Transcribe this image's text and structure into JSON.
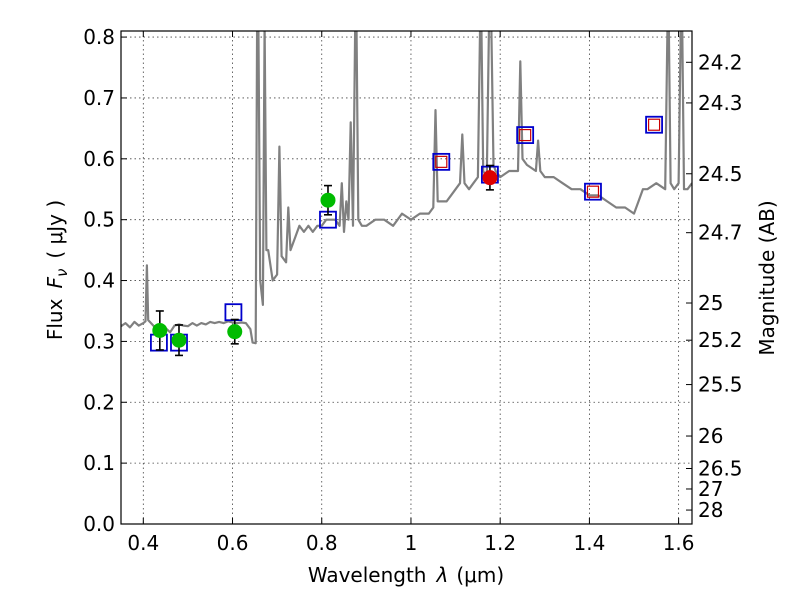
{
  "chart_data": {
    "type": "scatter",
    "title": "",
    "xlabel": "Wavelength",
    "xlabel_symbol": "λ",
    "xlabel_unit": "(μm)",
    "ylabel": "Flux",
    "ylabel_symbol": "F",
    "ylabel_subscript": "ν",
    "ylabel_unit": "( μJy )",
    "y2label": "Magnitude (AB)",
    "xlim": [
      0.35,
      1.63
    ],
    "ylim": [
      0.0,
      0.81
    ],
    "grid": true,
    "xticks": [
      {
        "value": 0.4,
        "label": "0.4"
      },
      {
        "value": 0.6,
        "label": "0.6"
      },
      {
        "value": 0.8,
        "label": "0.8"
      },
      {
        "value": 1.0,
        "label": "1"
      },
      {
        "value": 1.2,
        "label": "1.2"
      },
      {
        "value": 1.4,
        "label": "1.4"
      },
      {
        "value": 1.6,
        "label": "1.6"
      }
    ],
    "yticks": [
      {
        "value": 0.0,
        "label": "0.0"
      },
      {
        "value": 0.1,
        "label": "0.1"
      },
      {
        "value": 0.2,
        "label": "0.2"
      },
      {
        "value": 0.3,
        "label": "0.3"
      },
      {
        "value": 0.4,
        "label": "0.4"
      },
      {
        "value": 0.5,
        "label": "0.5"
      },
      {
        "value": 0.6,
        "label": "0.6"
      },
      {
        "value": 0.7,
        "label": "0.7"
      },
      {
        "value": 0.8,
        "label": "0.8"
      }
    ],
    "y2ticks": [
      {
        "mag": 24.2,
        "label": "24.2"
      },
      {
        "mag": 24.3,
        "label": "24.3"
      },
      {
        "mag": 24.5,
        "label": "24.5"
      },
      {
        "mag": 24.7,
        "label": "24.7"
      },
      {
        "mag": 25,
        "label": "25"
      },
      {
        "mag": 25.2,
        "label": "25.2"
      },
      {
        "mag": 25.5,
        "label": "25.5"
      },
      {
        "mag": 26,
        "label": "26"
      },
      {
        "mag": 26.5,
        "label": "26.5"
      },
      {
        "mag": 27,
        "label": "27"
      },
      {
        "mag": 28,
        "label": "28"
      }
    ],
    "colors": {
      "spectrum": "#808080",
      "model_box": "#0000cc",
      "inner_box": "#cc0000",
      "green_point": "#00bb00",
      "red_point": "#dd0000",
      "error_bar": "#000000"
    },
    "series": [
      {
        "name": "model-spectrum",
        "kind": "line",
        "points": [
          [
            0.35,
            0.325
          ],
          [
            0.36,
            0.33
          ],
          [
            0.37,
            0.323
          ],
          [
            0.38,
            0.332
          ],
          [
            0.39,
            0.326
          ],
          [
            0.4,
            0.33
          ],
          [
            0.405,
            0.333
          ],
          [
            0.408,
            0.425
          ],
          [
            0.411,
            0.335
          ],
          [
            0.42,
            0.328
          ],
          [
            0.43,
            0.32
          ],
          [
            0.44,
            0.318
          ],
          [
            0.45,
            0.322
          ],
          [
            0.46,
            0.315
          ],
          [
            0.47,
            0.326
          ],
          [
            0.48,
            0.328
          ],
          [
            0.49,
            0.326
          ],
          [
            0.5,
            0.325
          ],
          [
            0.51,
            0.33
          ],
          [
            0.52,
            0.326
          ],
          [
            0.53,
            0.33
          ],
          [
            0.54,
            0.328
          ],
          [
            0.55,
            0.332
          ],
          [
            0.56,
            0.33
          ],
          [
            0.57,
            0.332
          ],
          [
            0.58,
            0.33
          ],
          [
            0.59,
            0.333
          ],
          [
            0.6,
            0.331
          ],
          [
            0.61,
            0.33
          ],
          [
            0.62,
            0.331
          ],
          [
            0.63,
            0.33
          ],
          [
            0.64,
            0.32
          ],
          [
            0.645,
            0.298
          ],
          [
            0.652,
            0.297
          ],
          [
            0.655,
            0.82
          ],
          [
            0.658,
            0.82
          ],
          [
            0.662,
            0.4
          ],
          [
            0.668,
            0.36
          ],
          [
            0.672,
            0.82
          ],
          [
            0.676,
            0.45
          ],
          [
            0.68,
            0.45
          ],
          [
            0.69,
            0.4
          ],
          [
            0.7,
            0.41
          ],
          [
            0.705,
            0.62
          ],
          [
            0.71,
            0.44
          ],
          [
            0.72,
            0.43
          ],
          [
            0.725,
            0.52
          ],
          [
            0.73,
            0.45
          ],
          [
            0.74,
            0.47
          ],
          [
            0.75,
            0.49
          ],
          [
            0.76,
            0.48
          ],
          [
            0.77,
            0.49
          ],
          [
            0.78,
            0.48
          ],
          [
            0.79,
            0.49
          ],
          [
            0.8,
            0.49
          ],
          [
            0.81,
            0.5
          ],
          [
            0.82,
            0.5
          ],
          [
            0.83,
            0.5
          ],
          [
            0.84,
            0.49
          ],
          [
            0.845,
            0.56
          ],
          [
            0.85,
            0.48
          ],
          [
            0.855,
            0.53
          ],
          [
            0.86,
            0.5
          ],
          [
            0.865,
            0.66
          ],
          [
            0.87,
            0.49
          ],
          [
            0.875,
            0.82
          ],
          [
            0.878,
            0.82
          ],
          [
            0.882,
            0.5
          ],
          [
            0.89,
            0.49
          ],
          [
            0.9,
            0.49
          ],
          [
            0.92,
            0.5
          ],
          [
            0.94,
            0.5
          ],
          [
            0.96,
            0.49
          ],
          [
            0.98,
            0.51
          ],
          [
            1.0,
            0.5
          ],
          [
            1.02,
            0.51
          ],
          [
            1.04,
            0.51
          ],
          [
            1.05,
            0.52
          ],
          [
            1.055,
            0.68
          ],
          [
            1.06,
            0.53
          ],
          [
            1.07,
            0.53
          ],
          [
            1.08,
            0.53
          ],
          [
            1.09,
            0.54
          ],
          [
            1.1,
            0.55
          ],
          [
            1.11,
            0.56
          ],
          [
            1.115,
            0.64
          ],
          [
            1.12,
            0.56
          ],
          [
            1.13,
            0.55
          ],
          [
            1.14,
            0.56
          ],
          [
            1.15,
            0.57
          ],
          [
            1.155,
            0.82
          ],
          [
            1.158,
            0.82
          ],
          [
            1.162,
            0.58
          ],
          [
            1.17,
            0.57
          ],
          [
            1.175,
            0.82
          ],
          [
            1.18,
            0.82
          ],
          [
            1.185,
            0.59
          ],
          [
            1.19,
            0.58
          ],
          [
            1.2,
            0.57
          ],
          [
            1.22,
            0.58
          ],
          [
            1.24,
            0.58
          ],
          [
            1.245,
            0.76
          ],
          [
            1.25,
            0.6
          ],
          [
            1.26,
            0.59
          ],
          [
            1.28,
            0.58
          ],
          [
            1.285,
            0.63
          ],
          [
            1.29,
            0.58
          ],
          [
            1.3,
            0.57
          ],
          [
            1.32,
            0.57
          ],
          [
            1.34,
            0.56
          ],
          [
            1.36,
            0.55
          ],
          [
            1.38,
            0.55
          ],
          [
            1.4,
            0.54
          ],
          [
            1.42,
            0.54
          ],
          [
            1.44,
            0.53
          ],
          [
            1.46,
            0.52
          ],
          [
            1.48,
            0.52
          ],
          [
            1.5,
            0.51
          ],
          [
            1.51,
            0.53
          ],
          [
            1.52,
            0.55
          ],
          [
            1.53,
            0.55
          ],
          [
            1.55,
            0.56
          ],
          [
            1.57,
            0.55
          ],
          [
            1.575,
            0.82
          ],
          [
            1.578,
            0.82
          ],
          [
            1.582,
            0.56
          ],
          [
            1.59,
            0.55
          ],
          [
            1.6,
            0.56
          ],
          [
            1.605,
            0.82
          ],
          [
            1.608,
            0.82
          ],
          [
            1.612,
            0.55
          ],
          [
            1.62,
            0.55
          ],
          [
            1.63,
            0.56
          ]
        ]
      },
      {
        "name": "model-fluxes",
        "kind": "open-square",
        "points": [
          {
            "x": 0.435,
            "y": 0.298,
            "inner": false
          },
          {
            "x": 0.48,
            "y": 0.298,
            "inner": false
          },
          {
            "x": 0.602,
            "y": 0.348,
            "inner": false
          },
          {
            "x": 0.814,
            "y": 0.5,
            "inner": false
          },
          {
            "x": 1.068,
            "y": 0.595,
            "inner": true
          },
          {
            "x": 1.177,
            "y": 0.574,
            "inner": false
          },
          {
            "x": 1.256,
            "y": 0.639,
            "inner": true
          },
          {
            "x": 1.408,
            "y": 0.546,
            "inner": true
          },
          {
            "x": 1.545,
            "y": 0.656,
            "inner": true
          }
        ]
      },
      {
        "name": "observed-fluxes",
        "kind": "filled-circle",
        "points": [
          {
            "x": 0.437,
            "y": 0.318,
            "err": 0.032,
            "color": "green"
          },
          {
            "x": 0.48,
            "y": 0.302,
            "err": 0.025,
            "color": "green"
          },
          {
            "x": 0.605,
            "y": 0.316,
            "err": 0.02,
            "color": "green"
          },
          {
            "x": 0.814,
            "y": 0.532,
            "err": 0.024,
            "color": "green"
          },
          {
            "x": 1.177,
            "y": 0.569,
            "err": 0.02,
            "color": "red"
          }
        ]
      }
    ]
  }
}
